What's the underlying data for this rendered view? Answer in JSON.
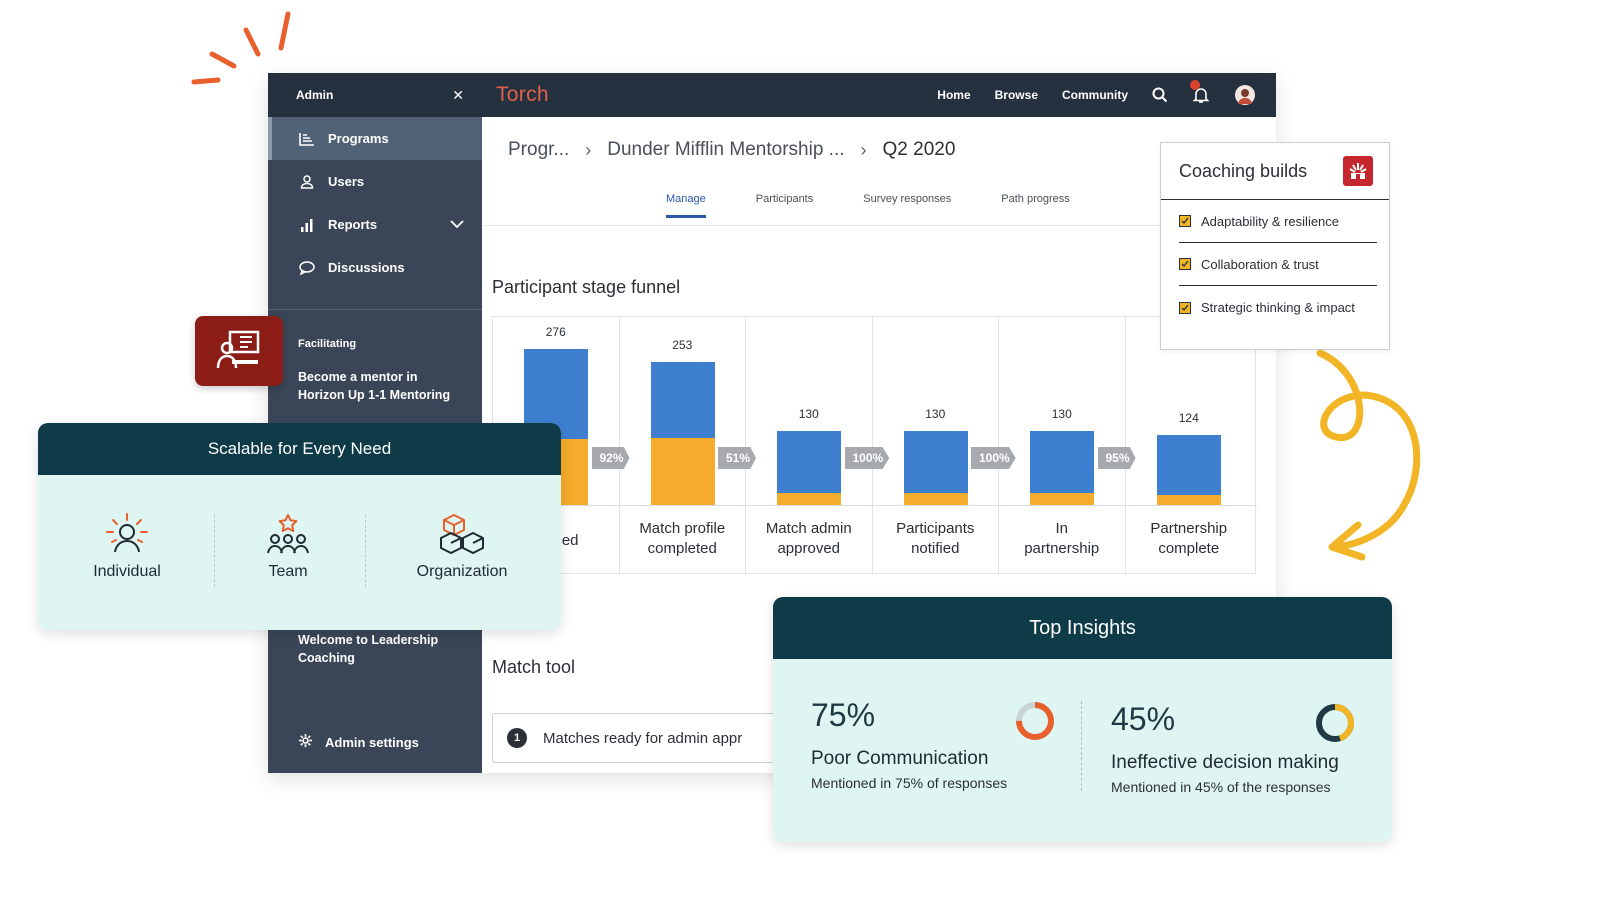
{
  "sidebar": {
    "header": "Admin",
    "close_icon": "close-icon",
    "items": [
      {
        "label": "Programs",
        "icon": "programs-icon"
      },
      {
        "label": "Users",
        "icon": "user-icon"
      },
      {
        "label": "Reports",
        "icon": "bar-chart-icon"
      },
      {
        "label": "Discussions",
        "icon": "chat-icon"
      }
    ],
    "section_label": "Facilitating",
    "promo": "Become a mentor in Horizon Up 1-1 Mentoring",
    "welcome": "Welcome to Leadership Coaching",
    "admin_settings": "Admin settings"
  },
  "topbar": {
    "brand": "Torch",
    "nav": [
      "Home",
      "Browse",
      "Community"
    ]
  },
  "breadcrumb": {
    "first": "Progr...",
    "second": "Dunder Mifflin Mentorship ...",
    "current": "Q2 2020"
  },
  "tabs": [
    "Manage",
    "Participants",
    "Survey responses",
    "Path progress"
  ],
  "funnel": {
    "title": "Participant stage funnel",
    "stages": [
      {
        "value": "276",
        "label_line1": "ed",
        "label_line2": ""
      },
      {
        "value": "253",
        "label_line1": "Match profile",
        "label_line2": "completed"
      },
      {
        "value": "130",
        "label_line1": "Match admin",
        "label_line2": "approved"
      },
      {
        "value": "130",
        "label_line1": "Participants",
        "label_line2": "notified"
      },
      {
        "value": "130",
        "label_line1": "In",
        "label_line2": "partnership"
      },
      {
        "value": "124",
        "label_line1": "Partnership",
        "label_line2": "complete"
      }
    ],
    "conversions": [
      "92%",
      "51%",
      "100%",
      "100%",
      "95%"
    ]
  },
  "chart_data": {
    "type": "bar",
    "title": "Participant stage funnel",
    "categories": [
      "…ed",
      "Match profile completed",
      "Match admin approved",
      "Participants notified",
      "In partnership",
      "Partnership complete"
    ],
    "values": [
      276,
      253,
      130,
      130,
      130,
      124
    ],
    "conversion_rates": [
      "92%",
      "51%",
      "100%",
      "100%",
      "95%"
    ],
    "colors": {
      "primary": "#3f7fd0",
      "secondary": "#f5ac2c"
    }
  },
  "match": {
    "title": "Match tool",
    "num": "1",
    "text": "Matches ready for admin appr"
  },
  "coaching": {
    "title": "Coaching builds",
    "items": [
      "Adaptability & resilience",
      "Collaboration & trust",
      "Strategic thinking & impact"
    ]
  },
  "scalable": {
    "title": "Scalable for Every Need",
    "items": [
      {
        "label": "Individual",
        "icon": "person-sun-icon"
      },
      {
        "label": "Team",
        "icon": "team-icon"
      },
      {
        "label": "Organization",
        "icon": "cubes-icon"
      }
    ]
  },
  "insights": {
    "title": "Top Insights",
    "items": [
      {
        "pct": "75%",
        "name": "Poor Communication",
        "sub": "Mentioned in 75% of responses",
        "fraction": 0.75,
        "color": "#e8602c"
      },
      {
        "pct": "45%",
        "name": "Ineffective decision making",
        "sub": "Mentioned in 45% of the responses",
        "fraction": 0.45,
        "color": "#f2b525"
      }
    ]
  },
  "colors": {
    "navy": "#0f3a48",
    "accent_orange": "#e8602c",
    "mint": "#dff5f2",
    "brand_red": "#e0604a",
    "bar_blue": "#3f7fd0",
    "bar_orange": "#f5ac2c"
  }
}
